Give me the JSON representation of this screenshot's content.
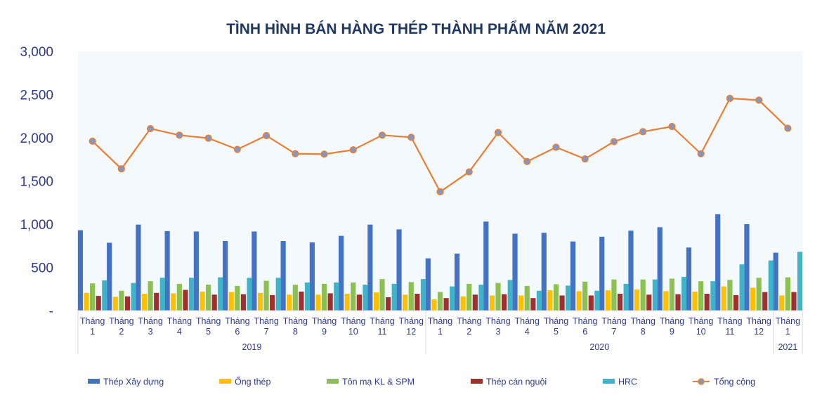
{
  "chart_data": {
    "type": "bar",
    "title": "TÌNH HÌNH BÁN HÀNG THÉP THÀNH PHẨM NĂM 2021",
    "xlabel": "",
    "ylabel": "",
    "ylim": [
      0,
      3000
    ],
    "y_ticks": [
      "-",
      "500",
      "1,000",
      "1,500",
      "2,000",
      "2,500",
      "3,000"
    ],
    "grid": false,
    "legend_position": "bottom",
    "categories": [
      [
        "Tháng",
        "1"
      ],
      [
        "Tháng",
        "2"
      ],
      [
        "Tháng",
        "3"
      ],
      [
        "Tháng",
        "4"
      ],
      [
        "Tháng",
        "5"
      ],
      [
        "Tháng",
        "6"
      ],
      [
        "Tháng",
        "7"
      ],
      [
        "Tháng",
        "8"
      ],
      [
        "Tháng",
        "9"
      ],
      [
        "Tháng",
        "10"
      ],
      [
        "Tháng",
        "11"
      ],
      [
        "Tháng",
        "12"
      ],
      [
        "Tháng",
        "1"
      ],
      [
        "Tháng",
        "2"
      ],
      [
        "Tháng",
        "3"
      ],
      [
        "Tháng",
        "4"
      ],
      [
        "Tháng",
        "5"
      ],
      [
        "Tháng",
        "6"
      ],
      [
        "Tháng",
        "7"
      ],
      [
        "Tháng",
        "8"
      ],
      [
        "Tháng",
        "9"
      ],
      [
        "Tháng",
        "10"
      ],
      [
        "Tháng",
        "11"
      ],
      [
        "Tháng",
        "12"
      ],
      [
        "Tháng",
        "1"
      ]
    ],
    "year_groups": [
      {
        "label": "2019",
        "start": 0,
        "end": 11
      },
      {
        "label": "2020",
        "start": 12,
        "end": 23
      },
      {
        "label": "2021",
        "start": 24,
        "end": 24
      }
    ],
    "series": [
      {
        "name": "Thép Xây dựng",
        "type": "bar",
        "color": "#4472c4",
        "values": [
          930,
          785,
          995,
          920,
          915,
          805,
          915,
          805,
          790,
          865,
          995,
          940,
          605,
          660,
          1030,
          890,
          900,
          800,
          855,
          925,
          965,
          730,
          1115,
          1000,
          670
        ]
      },
      {
        "name": "Ống thép",
        "type": "bar",
        "color": "#ffc000",
        "values": [
          205,
          160,
          195,
          200,
          220,
          215,
          205,
          185,
          185,
          195,
          210,
          185,
          130,
          165,
          175,
          175,
          235,
          225,
          235,
          245,
          225,
          220,
          280,
          265,
          175
        ]
      },
      {
        "name": "Tôn mạ KL & SPM",
        "type": "bar",
        "color": "#8cc152",
        "values": [
          315,
          230,
          340,
          310,
          300,
          285,
          345,
          300,
          310,
          325,
          365,
          330,
          215,
          310,
          320,
          285,
          305,
          335,
          360,
          360,
          370,
          340,
          355,
          380,
          385
        ]
      },
      {
        "name": "Thép cán nguội",
        "type": "bar",
        "color": "#a0302f",
        "values": [
          170,
          165,
          205,
          240,
          185,
          190,
          180,
          220,
          200,
          185,
          155,
          195,
          145,
          185,
          190,
          145,
          175,
          175,
          195,
          185,
          190,
          195,
          180,
          215,
          215
        ]
      },
      {
        "name": "HRC",
        "type": "bar",
        "color": "#3fb3c8",
        "values": [
          350,
          320,
          380,
          380,
          385,
          380,
          380,
          325,
          325,
          300,
          310,
          365,
          280,
          300,
          355,
          230,
          290,
          230,
          310,
          360,
          390,
          340,
          535,
          580,
          680
        ]
      },
      {
        "name": "Tổng cộng",
        "type": "line",
        "color": "#ed7d31",
        "marker_color": "#7f98c6",
        "values": [
          1960,
          1640,
          2105,
          2030,
          1995,
          1865,
          2025,
          1815,
          1810,
          1860,
          2030,
          2005,
          1375,
          1605,
          2060,
          1725,
          1890,
          1755,
          1955,
          2070,
          2130,
          1815,
          2455,
          2435,
          2110
        ]
      }
    ]
  }
}
